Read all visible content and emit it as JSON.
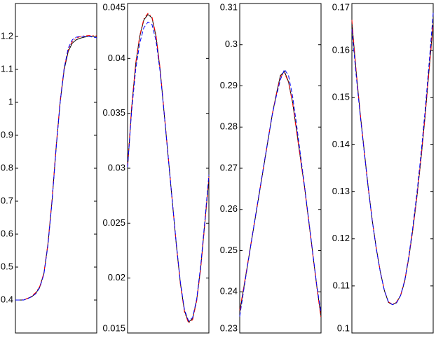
{
  "chart_data": [
    {
      "type": "line",
      "x": [
        0,
        1,
        2,
        3,
        4,
        5,
        6,
        7,
        8,
        9,
        10,
        11,
        12,
        13,
        14,
        15,
        16,
        17,
        18,
        19,
        20
      ],
      "xlim": [
        0,
        20
      ],
      "ylim": [
        0.3,
        1.3
      ],
      "yticks": [
        0.4,
        0.5,
        0.6,
        0.7,
        0.8,
        0.9,
        1,
        1.1,
        1.2
      ],
      "series": [
        {
          "color": "#000000",
          "style": "solid",
          "values": [
            0.4,
            0.4,
            0.4,
            0.405,
            0.41,
            0.42,
            0.44,
            0.48,
            0.57,
            0.7,
            0.86,
            1.0,
            1.1,
            1.155,
            1.18,
            1.19,
            1.195,
            1.198,
            1.2,
            1.2,
            1.2
          ]
        },
        {
          "color": "#ff0000",
          "style": "dashdot",
          "values": [
            0.4,
            0.4,
            0.401,
            0.405,
            0.412,
            0.423,
            0.442,
            0.482,
            0.572,
            0.705,
            0.865,
            1.005,
            1.105,
            1.16,
            1.185,
            1.195,
            1.2,
            1.202,
            1.203,
            1.203,
            1.202
          ]
        },
        {
          "color": "#0000ff",
          "style": "dashed",
          "values": [
            0.4,
            0.4,
            0.4,
            0.404,
            0.41,
            0.419,
            0.438,
            0.478,
            0.566,
            0.698,
            0.858,
            1.0,
            1.105,
            1.165,
            1.19,
            1.198,
            1.2,
            1.2,
            1.2,
            1.198,
            1.196
          ]
        }
      ]
    },
    {
      "type": "line",
      "x": [
        0,
        1,
        2,
        3,
        4,
        5,
        6,
        7,
        8,
        9,
        10,
        11,
        12,
        13,
        14,
        15,
        16,
        17,
        18,
        19,
        20
      ],
      "xlim": [
        0,
        20
      ],
      "ylim": [
        0.015,
        0.045
      ],
      "yticks": [
        0.015,
        0.02,
        0.025,
        0.03,
        0.035,
        0.04,
        0.045
      ],
      "series": [
        {
          "color": "#000000",
          "style": "solid",
          "values": [
            0.03,
            0.0355,
            0.0395,
            0.042,
            0.0435,
            0.044,
            0.0437,
            0.042,
            0.039,
            0.035,
            0.031,
            0.027,
            0.023,
            0.0195,
            0.017,
            0.016,
            0.0163,
            0.018,
            0.021,
            0.025,
            0.029
          ]
        },
        {
          "color": "#ff0000",
          "style": "dashdot",
          "values": [
            0.0302,
            0.0356,
            0.0396,
            0.0421,
            0.0436,
            0.0441,
            0.0438,
            0.0421,
            0.0391,
            0.0351,
            0.0311,
            0.027,
            0.023,
            0.0194,
            0.0169,
            0.0159,
            0.0162,
            0.0179,
            0.0209,
            0.0249,
            0.0292
          ]
        },
        {
          "color": "#0000ff",
          "style": "dashed",
          "values": [
            0.0301,
            0.0352,
            0.039,
            0.0414,
            0.0428,
            0.0433,
            0.0431,
            0.0416,
            0.0388,
            0.035,
            0.031,
            0.027,
            0.0231,
            0.0196,
            0.0171,
            0.0161,
            0.0164,
            0.0181,
            0.0212,
            0.0252,
            0.0294
          ]
        }
      ]
    },
    {
      "type": "line",
      "x": [
        0,
        1,
        2,
        3,
        4,
        5,
        6,
        7,
        8,
        9,
        10,
        11,
        12,
        13,
        14,
        15,
        16,
        17,
        18,
        19,
        20
      ],
      "xlim": [
        0,
        20
      ],
      "ylim": [
        0.23,
        0.31
      ],
      "yticks": [
        0.23,
        0.24,
        0.25,
        0.26,
        0.27,
        0.28,
        0.29,
        0.3,
        0.31
      ],
      "series": [
        {
          "color": "#000000",
          "style": "solid",
          "values": [
            0.235,
            0.241,
            0.247,
            0.253,
            0.259,
            0.265,
            0.271,
            0.277,
            0.283,
            0.288,
            0.2925,
            0.2935,
            0.291,
            0.286,
            0.279,
            0.272,
            0.265,
            0.257,
            0.249,
            0.241,
            0.234
          ]
        },
        {
          "color": "#ff0000",
          "style": "dashdot",
          "values": [
            0.2355,
            0.2412,
            0.2472,
            0.2532,
            0.2592,
            0.2652,
            0.2712,
            0.2772,
            0.2832,
            0.2878,
            0.2922,
            0.2932,
            0.2908,
            0.2858,
            0.2788,
            0.2718,
            0.2648,
            0.2568,
            0.2488,
            0.2408,
            0.2335
          ]
        },
        {
          "color": "#0000ff",
          "style": "dashed",
          "values": [
            0.234,
            0.2405,
            0.2468,
            0.253,
            0.2592,
            0.2652,
            0.2712,
            0.2772,
            0.283,
            0.2875,
            0.2915,
            0.294,
            0.2925,
            0.2875,
            0.2805,
            0.2728,
            0.2652,
            0.2572,
            0.2492,
            0.2412,
            0.235
          ]
        }
      ]
    },
    {
      "type": "line",
      "x": [
        0,
        1,
        2,
        3,
        4,
        5,
        6,
        7,
        8,
        9,
        10,
        11,
        12,
        13,
        14,
        15,
        16,
        17,
        18,
        19,
        20
      ],
      "xlim": [
        0,
        20
      ],
      "ylim": [
        0.1,
        0.17
      ],
      "yticks": [
        0.1,
        0.11,
        0.12,
        0.13,
        0.14,
        0.15,
        0.16,
        0.17
      ],
      "series": [
        {
          "color": "#000000",
          "style": "solid",
          "values": [
            0.166,
            0.156,
            0.147,
            0.139,
            0.131,
            0.124,
            0.118,
            0.113,
            0.109,
            0.1065,
            0.106,
            0.1065,
            0.108,
            0.111,
            0.116,
            0.122,
            0.129,
            0.137,
            0.146,
            0.156,
            0.166
          ]
        },
        {
          "color": "#ff0000",
          "style": "dashdot",
          "values": [
            0.1665,
            0.1562,
            0.1471,
            0.1389,
            0.1311,
            0.124,
            0.118,
            0.113,
            0.109,
            0.1066,
            0.1061,
            0.1066,
            0.1081,
            0.1112,
            0.1161,
            0.1221,
            0.1291,
            0.1371,
            0.1461,
            0.1558,
            0.1655
          ]
        },
        {
          "color": "#0000ff",
          "style": "dashed",
          "values": [
            0.1645,
            0.1552,
            0.1466,
            0.1387,
            0.131,
            0.1239,
            0.1179,
            0.1129,
            0.109,
            0.1066,
            0.106,
            0.1064,
            0.108,
            0.1112,
            0.1163,
            0.1226,
            0.1298,
            0.138,
            0.1472,
            0.1574,
            0.168
          ]
        }
      ]
    }
  ]
}
